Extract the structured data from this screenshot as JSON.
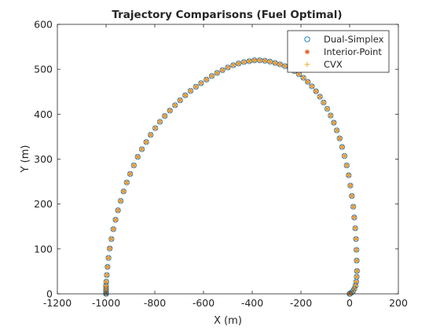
{
  "chart_data": {
    "type": "scatter",
    "title": "Trajectory Comparisons (Fuel Optimal)",
    "xlabel": "X (m)",
    "ylabel": "Y (m)",
    "xlim": [
      -1200,
      200
    ],
    "ylim": [
      0,
      600
    ],
    "xticks": [
      -1200,
      -1000,
      -800,
      -600,
      -400,
      -200,
      0,
      200
    ],
    "yticks": [
      0,
      100,
      200,
      300,
      400,
      500,
      600
    ],
    "xtick_labels": [
      "-1200",
      "-1000",
      "-800",
      "-600",
      "-400",
      "-200",
      "0",
      "200"
    ],
    "ytick_labels": [
      "0",
      "100",
      "200",
      "300",
      "400",
      "500",
      "600"
    ],
    "grid": false,
    "legend_position": "top-right",
    "colors": {
      "dual_simplex": "#0072bd",
      "interior_point": "#d95319",
      "cvx": "#edb120",
      "axis": "#262626"
    },
    "series": [
      {
        "name": "Dual-Simplex",
        "marker": "circle"
      },
      {
        "name": "Interior-Point",
        "marker": "asterisk"
      },
      {
        "name": "CVX",
        "marker": "plus"
      }
    ],
    "x": [
      -1000,
      -1000,
      -1000,
      -1000,
      -1000,
      -1000,
      -999,
      -997,
      -994,
      -990,
      -985,
      -978,
      -970,
      -961,
      -951,
      -940,
      -928,
      -915,
      -901,
      -886,
      -870,
      -853,
      -835,
      -817,
      -798,
      -779,
      -759,
      -738,
      -717,
      -696,
      -675,
      -653,
      -631,
      -610,
      -588,
      -566,
      -544,
      -522,
      -500,
      -478,
      -456,
      -434,
      -412,
      -391,
      -369,
      -348,
      -327,
      -306,
      -286,
      -266,
      -246,
      -227,
      -208,
      -190,
      -172,
      -155,
      -138,
      -122,
      -107,
      -92,
      -78,
      -65,
      -53,
      -41,
      -31,
      -21,
      -12,
      -4,
      3,
      9,
      15,
      19,
      23,
      26,
      28,
      29,
      30,
      29,
      27,
      24,
      19,
      14,
      8,
      3,
      0,
      0
    ],
    "y": [
      0,
      2,
      5,
      8,
      13,
      18,
      27,
      42,
      60,
      80,
      101,
      122,
      144,
      165,
      186,
      207,
      228,
      248,
      267,
      286,
      305,
      322,
      338,
      354,
      369,
      383,
      396,
      408,
      420,
      431,
      442,
      452,
      461,
      469,
      477,
      485,
      492,
      498,
      504,
      509,
      513,
      516,
      518,
      520,
      520,
      519,
      517,
      514,
      511,
      507,
      502,
      496,
      489,
      481,
      472,
      462,
      451,
      439,
      426,
      412,
      397,
      381,
      364,
      346,
      327,
      307,
      286,
      264,
      241,
      218,
      194,
      170,
      146,
      122,
      98,
      74,
      51,
      38,
      27,
      18,
      11,
      6,
      3,
      1,
      0,
      0
    ]
  }
}
